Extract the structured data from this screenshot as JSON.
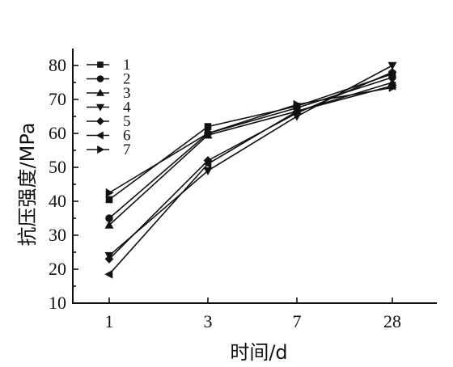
{
  "chart_data": {
    "type": "line",
    "xlabel": "时间/d",
    "ylabel": "抗压强度/MPa",
    "categories": [
      "1",
      "3",
      "7",
      "28"
    ],
    "ylim": [
      10,
      85
    ],
    "yticks": [
      10,
      20,
      30,
      40,
      50,
      60,
      70,
      80
    ],
    "legend_position": "top-left",
    "series": [
      {
        "name": "1",
        "marker": "square",
        "values": [
          40.5,
          62.0,
          68.0,
          77.5
        ]
      },
      {
        "name": "2",
        "marker": "circle",
        "values": [
          35.0,
          60.0,
          67.5,
          76.5
        ]
      },
      {
        "name": "3",
        "marker": "triangle-up",
        "values": [
          33.0,
          59.5,
          66.5,
          75.0
        ]
      },
      {
        "name": "4",
        "marker": "triangle-down",
        "values": [
          24.0,
          49.0,
          65.0,
          80.0
        ]
      },
      {
        "name": "5",
        "marker": "diamond",
        "values": [
          23.0,
          52.0,
          66.0,
          78.0
        ]
      },
      {
        "name": "6",
        "marker": "triangle-left",
        "values": [
          18.5,
          51.0,
          66.5,
          74.0
        ]
      },
      {
        "name": "7",
        "marker": "triangle-right",
        "values": [
          42.5,
          60.0,
          68.5,
          73.5
        ]
      }
    ]
  }
}
